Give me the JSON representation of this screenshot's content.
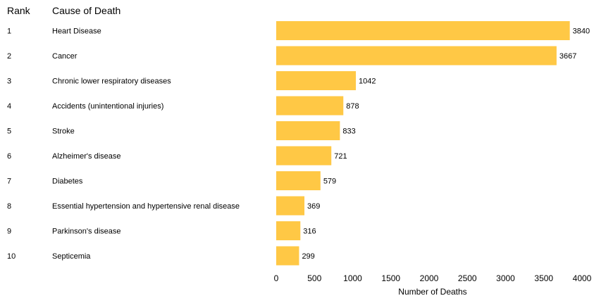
{
  "header": {
    "rank": "Rank",
    "cause": "Cause of Death"
  },
  "chart_data": {
    "type": "bar",
    "orientation": "horizontal",
    "ranks": [
      "1",
      "2",
      "3",
      "4",
      "5",
      "6",
      "7",
      "8",
      "9",
      "10"
    ],
    "categories": [
      "Heart Disease",
      "Cancer",
      "Chronic lower respiratory diseases",
      "Accidents (unintentional injuries)",
      "Stroke",
      "Alzheimer's disease",
      "Diabetes",
      "Essential hypertension and hypertensive renal disease",
      "Parkinson's disease",
      "Septicemia"
    ],
    "values": [
      3840,
      3667,
      1042,
      878,
      833,
      721,
      579,
      369,
      316,
      299
    ],
    "xlabel": "Number of Deaths",
    "xlim": [
      0,
      4000
    ],
    "xticks": [
      0,
      500,
      1000,
      1500,
      2000,
      2500,
      3000,
      3500,
      4000
    ],
    "bar_color": "#FFC845",
    "grid": false
  }
}
